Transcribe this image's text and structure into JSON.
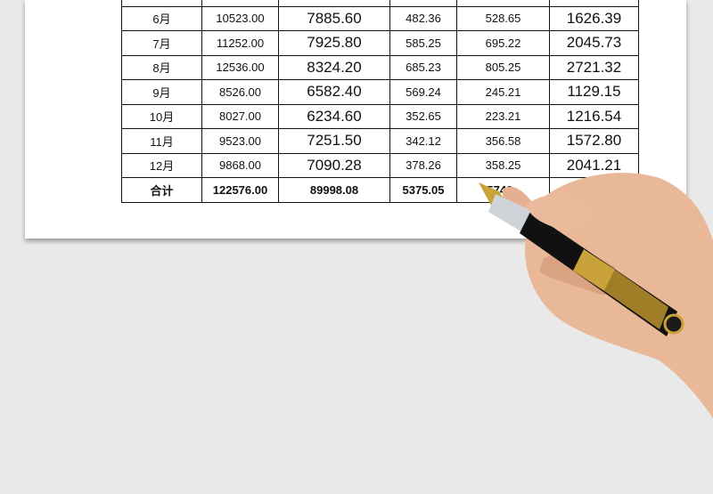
{
  "table": {
    "rows": [
      [
        "",
        "",
        "",
        "",
        "",
        ""
      ],
      [
        "6月",
        "10523.00",
        "7885.60",
        "482.36",
        "528.65",
        "1626.39"
      ],
      [
        "7月",
        "11252.00",
        "7925.80",
        "585.25",
        "695.22",
        "2045.73"
      ],
      [
        "8月",
        "12536.00",
        "8324.20",
        "685.23",
        "805.25",
        "2721.32"
      ],
      [
        "9月",
        "8526.00",
        "6582.40",
        "569.24",
        "245.21",
        "1129.15"
      ],
      [
        "10月",
        "8027.00",
        "6234.60",
        "352.65",
        "223.21",
        "1216.54"
      ],
      [
        "11月",
        "9523.00",
        "7251.50",
        "342.12",
        "356.58",
        "1572.80"
      ],
      [
        "12月",
        "9868.00",
        "7090.28",
        "378.26",
        "358.25",
        "2041.21"
      ]
    ],
    "total": [
      "合计",
      "122576.00",
      "89998.08",
      "5375.05",
      "5743..",
      "214"
    ]
  }
}
